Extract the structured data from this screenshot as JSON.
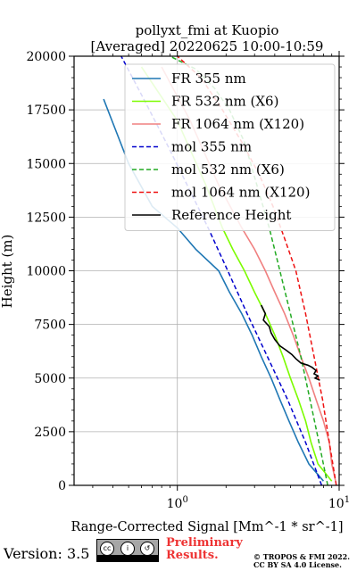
{
  "chart_data": {
    "type": "line",
    "title": "pollyxt_fmi at Kuopio",
    "subtitle": "[Averaged] 20220625 10:00-10:59",
    "xlabel": "Range-Corrected Signal [Mm^-1 * sr^-1]",
    "ylabel": "Height (m)",
    "xscale": "log",
    "xlim": [
      0.23,
      10
    ],
    "ylim": [
      0,
      20000
    ],
    "xticks": [
      1,
      10
    ],
    "xtick_labels": [
      "10^0",
      "10^1"
    ],
    "yticks": [
      0,
      2500,
      5000,
      7500,
      10000,
      12500,
      15000,
      17500,
      20000
    ],
    "grid": true,
    "legend_placement": "top-right",
    "series": [
      {
        "name": "FR 355 nm",
        "color": "#1f77b4",
        "style": "solid",
        "x": [
          8.0,
          6.5,
          5.6,
          4.9,
          4.3,
          3.8,
          3.3,
          2.9,
          2.5,
          2.1,
          1.8,
          1.3,
          1.0,
          0.7,
          0.5,
          0.35
        ],
        "y": [
          200,
          1000,
          2000,
          3000,
          4000,
          5000,
          6000,
          7000,
          8000,
          9000,
          10000,
          11000,
          12000,
          13000,
          15000,
          18000
        ]
      },
      {
        "name": "FR 532 nm (X6)",
        "color": "#7cfc00",
        "style": "solid",
        "x": [
          9.0,
          7.4,
          6.7,
          6.2,
          5.6,
          5.0,
          4.5,
          4.0,
          3.5,
          3.0,
          2.6,
          2.2,
          1.9,
          1.5,
          1.0,
          0.6
        ],
        "y": [
          200,
          1000,
          2000,
          3000,
          4000,
          5000,
          6000,
          7000,
          8000,
          9000,
          10000,
          11000,
          12000,
          14000,
          17000,
          19500
        ]
      },
      {
        "name": "FR 1064 nm (X120)",
        "color": "#f08080",
        "style": "solid",
        "x": [
          9.5,
          9.0,
          8.7,
          8.0,
          7.2,
          6.5,
          5.8,
          5.2,
          4.6,
          4.0,
          3.5,
          3.0,
          2.5,
          1.8,
          1.2,
          0.8
        ],
        "y": [
          200,
          1000,
          2000,
          3000,
          4000,
          5000,
          6000,
          7000,
          8000,
          9000,
          10000,
          11000,
          12000,
          14000,
          17000,
          19500
        ]
      },
      {
        "name": "mol 355 nm",
        "color": "#0000cd",
        "style": "dashed",
        "x": [
          7.8,
          6.2,
          4.8,
          3.6,
          2.7,
          2.05,
          1.55,
          1.15,
          0.85,
          0.62,
          0.45,
          0.33
        ],
        "y": [
          0,
          2000,
          4000,
          6000,
          8000,
          10000,
          12000,
          14000,
          16000,
          18000,
          20000,
          21500
        ]
      },
      {
        "name": "mol 532 nm (X6)",
        "color": "#22aa22",
        "style": "dashed",
        "x": [
          8.5,
          7.5,
          6.6,
          5.8,
          5.0,
          4.3,
          3.7,
          3.1,
          2.6,
          2.1,
          1.7,
          1.3,
          0.9
        ],
        "y": [
          0,
          2000,
          4000,
          6000,
          8000,
          10000,
          12000,
          14000,
          16000,
          17500,
          18500,
          19400,
          20000
        ]
      },
      {
        "name": "mol 1064 nm (X120)",
        "color": "#ee1111",
        "style": "dashed",
        "x": [
          9.6,
          8.7,
          7.9,
          7.0,
          6.2,
          5.4,
          4.6,
          3.9,
          3.2,
          2.5,
          1.9,
          1.4,
          1.0
        ],
        "y": [
          0,
          2000,
          4000,
          6000,
          8000,
          10000,
          11500,
          13000,
          14500,
          16000,
          17500,
          19000,
          20000
        ]
      },
      {
        "name": "Reference Height",
        "color": "#000000",
        "style": "solid",
        "x": [
          3.3,
          3.5,
          3.4,
          3.7,
          3.8,
          4.0,
          4.3,
          4.7,
          5.1,
          5.4,
          5.8,
          6.4,
          6.8,
          7.2,
          7.0,
          7.4,
          7.1,
          7.6
        ],
        "y": [
          8400,
          8000,
          7700,
          7400,
          7100,
          6800,
          6500,
          6300,
          6100,
          5900,
          5700,
          5600,
          5500,
          5350,
          5200,
          5100,
          5000,
          4900
        ]
      }
    ]
  },
  "footer": {
    "version": "Version: 3.5",
    "license_badge": "CC BY SA",
    "preliminary_line1": "Preliminary",
    "preliminary_line2": "Results.",
    "copyright_line1": "© TROPOS & FMI 2022.",
    "copyright_line2": "CC BY SA 4.0 License."
  }
}
